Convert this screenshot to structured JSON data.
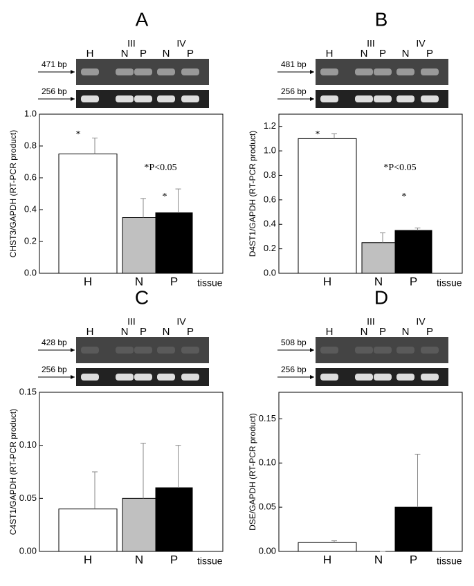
{
  "chart_data": [
    {
      "type": "bar",
      "title": "A",
      "categories": [
        "H",
        "N",
        "P"
      ],
      "values": [
        0.75,
        0.35,
        0.38
      ],
      "errors": [
        0.1,
        0.12,
        0.15
      ],
      "colors": [
        "#ffffff",
        "#c0c0c0",
        "#000000"
      ],
      "y_label": "CHST3/GAPDH (RT-PCR product)",
      "x_label": "tissue",
      "ylim": [
        0,
        1.0
      ],
      "yticks": [
        {
          "value": 0,
          "label": "0.0"
        },
        0.2,
        0.4,
        0.6,
        0.8,
        {
          "value": 1.0,
          "label": "1.0"
        }
      ],
      "annotations": [
        "*",
        "*",
        "*P<0.05"
      ],
      "gel": {
        "lanes": [
          "H",
          "N",
          "P",
          "N",
          "P"
        ],
        "stages": [
          "III",
          "IV"
        ],
        "bands": [
          "471 bp",
          "256 bp"
        ]
      }
    },
    {
      "type": "bar",
      "title": "B",
      "categories": [
        "H",
        "N",
        "P"
      ],
      "values": [
        1.1,
        0.25,
        0.35
      ],
      "errors": [
        0.04,
        0.08,
        0.02
      ],
      "colors": [
        "#ffffff",
        "#c0c0c0",
        "#000000"
      ],
      "y_label": "D4ST1/GAPDH (RT-PCR product)",
      "x_label": "tissue",
      "ylim": [
        0,
        1.3
      ],
      "yticks": [
        {
          "value": 0,
          "label": "0.0"
        },
        0.2,
        0.4,
        0.6,
        0.8,
        {
          "value": 1.0,
          "label": "1.0"
        },
        1.2
      ],
      "annotations": [
        "*",
        "*",
        "*P<0.05"
      ],
      "gel": {
        "lanes": [
          "H",
          "N",
          "P",
          "N",
          "P"
        ],
        "stages": [
          "III",
          "IV"
        ],
        "bands": [
          "481 bp",
          "256 bp"
        ]
      }
    },
    {
      "type": "bar",
      "title": "C",
      "categories": [
        "H",
        "N",
        "P"
      ],
      "values": [
        0.04,
        0.05,
        0.06
      ],
      "errors": [
        0.035,
        0.052,
        0.04
      ],
      "colors": [
        "#ffffff",
        "#c0c0c0",
        "#000000"
      ],
      "y_label": "C4ST1/GAPDH (RT-PCR product)",
      "x_label": "tissue",
      "ylim": [
        0,
        0.15
      ],
      "yticks": [
        {
          "value": 0,
          "label": "0.00"
        },
        0.05,
        {
          "value": 0.1,
          "label": "0.10"
        },
        0.15
      ],
      "gel": {
        "lanes": [
          "H",
          "N",
          "P",
          "N",
          "P"
        ],
        "stages": [
          "III",
          "IV"
        ],
        "bands": [
          "428 bp",
          "256 bp"
        ]
      }
    },
    {
      "type": "bar",
      "title": "D",
      "categories": [
        "H",
        "N",
        "P"
      ],
      "values": [
        0.01,
        0,
        0.05
      ],
      "errors": [
        0.002,
        0,
        0.06
      ],
      "colors": [
        "#ffffff",
        "#c0c0c0",
        "#000000"
      ],
      "y_label": "DSE/GAPDH (RT-PCR product)",
      "x_label": "tissue",
      "ylim": [
        0,
        0.18
      ],
      "yticks": [
        {
          "value": 0,
          "label": "0.00"
        },
        0.05,
        {
          "value": 0.1,
          "label": "0.10"
        },
        0.15
      ],
      "gel": {
        "lanes": [
          "H",
          "N",
          "P",
          "N",
          "P"
        ],
        "stages": [
          "III",
          "IV"
        ],
        "bands": [
          "508 bp",
          "256 bp"
        ]
      }
    }
  ]
}
